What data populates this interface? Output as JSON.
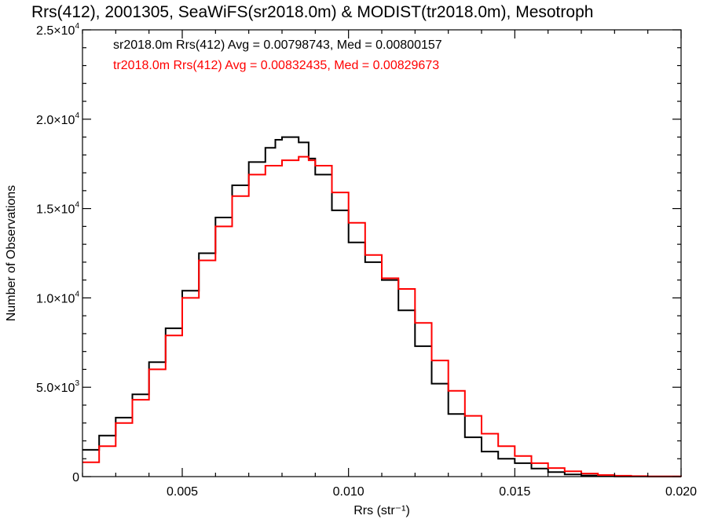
{
  "chart_data": {
    "type": "line",
    "title": "Rrs(412), 2001305, SeaWiFS(sr2018.0m) & MODIST(tr2018.0m), Mesotroph",
    "xlabel": "Rrs (str⁻¹)",
    "ylabel": "Number of Observations",
    "xlim": [
      0.002,
      0.02
    ],
    "ylim": [
      0,
      25000
    ],
    "x_ticks": [
      {
        "value": 0.005,
        "label": "0.005"
      },
      {
        "value": 0.01,
        "label": "0.010"
      },
      {
        "value": 0.015,
        "label": "0.015"
      },
      {
        "value": 0.02,
        "label": "0.020"
      }
    ],
    "y_ticks": [
      {
        "value": 0,
        "mant": "0",
        "exp": ""
      },
      {
        "value": 5000,
        "mant": "5.0×10",
        "exp": "3"
      },
      {
        "value": 10000,
        "mant": "1.0×10",
        "exp": "4"
      },
      {
        "value": 15000,
        "mant": "1.5×10",
        "exp": "4"
      },
      {
        "value": 20000,
        "mant": "2.0×10",
        "exp": "4"
      },
      {
        "value": 25000,
        "mant": "2.5×10",
        "exp": "4"
      }
    ],
    "annotations": [
      {
        "text": "sr2018.0m Rrs(412) Avg = 0.00798743, Med = 0.00800157",
        "color": "#000000"
      },
      {
        "text": "tr2018.0m Rrs(412) Avg = 0.00832435, Med = 0.00829673",
        "color": "#ff0000"
      }
    ],
    "series": [
      {
        "color": "#000000",
        "x": [
          0.002,
          0.0025,
          0.003,
          0.0035,
          0.004,
          0.0045,
          0.005,
          0.0055,
          0.006,
          0.0065,
          0.007,
          0.0075,
          0.0078,
          0.008,
          0.0082,
          0.0085,
          0.0088,
          0.009,
          0.0095,
          0.01,
          0.0105,
          0.011,
          0.0115,
          0.012,
          0.0125,
          0.013,
          0.0135,
          0.014,
          0.0145,
          0.015,
          0.0155,
          0.016,
          0.0165,
          0.017,
          0.0175,
          0.018,
          0.0185,
          0.019,
          0.02
        ],
        "y": [
          1500,
          2300,
          3300,
          4600,
          6400,
          8300,
          10400,
          12500,
          14500,
          16300,
          17600,
          18400,
          18850,
          19000,
          19000,
          18700,
          17800,
          16900,
          14900,
          13100,
          12000,
          11000,
          9300,
          7300,
          5200,
          3500,
          2200,
          1400,
          1000,
          750,
          450,
          250,
          120,
          60,
          30,
          15,
          8,
          3,
          0
        ]
      },
      {
        "color": "#ff0000",
        "x": [
          0.002,
          0.0025,
          0.003,
          0.0035,
          0.004,
          0.0045,
          0.005,
          0.0055,
          0.006,
          0.0065,
          0.007,
          0.0075,
          0.008,
          0.0085,
          0.0088,
          0.009,
          0.0095,
          0.01,
          0.0105,
          0.011,
          0.0115,
          0.012,
          0.0125,
          0.013,
          0.0135,
          0.014,
          0.0145,
          0.015,
          0.0155,
          0.016,
          0.0165,
          0.017,
          0.0175,
          0.018,
          0.0185,
          0.019,
          0.02
        ],
        "y": [
          800,
          1700,
          3000,
          4300,
          6000,
          7900,
          10000,
          12100,
          14000,
          15700,
          16900,
          17400,
          17700,
          17900,
          17700,
          17400,
          15900,
          14200,
          12400,
          11100,
          10500,
          8600,
          6500,
          4800,
          3400,
          2400,
          1700,
          1150,
          750,
          480,
          300,
          170,
          90,
          50,
          25,
          10,
          0
        ]
      }
    ]
  }
}
